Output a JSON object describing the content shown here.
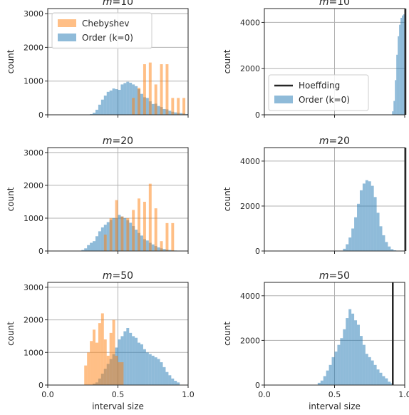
{
  "colors": {
    "chebyshev": "#ff7f0e",
    "order": "#1f77b4",
    "hoeffding": "#262626",
    "grid": "#b0b0b0"
  },
  "chart_data": [
    {
      "type": "histogram",
      "title": "m=10",
      "xlabel": "",
      "ylabel": "count",
      "xlim": [
        0.0,
        1.0
      ],
      "ylim": [
        0,
        3150
      ],
      "yticks": [
        0,
        1000,
        2000,
        3000
      ],
      "xticks": [
        0.0,
        0.5,
        1.0
      ],
      "show_xticklabels": false,
      "legend": {
        "placement": "upper-left",
        "entries": [
          {
            "name": "Chebyshev",
            "kind": "patch",
            "series": "chebyshev"
          },
          {
            "name": "Order (k=0)",
            "kind": "patch",
            "series": "order"
          }
        ]
      },
      "series": [
        {
          "name": "Order (k=0)",
          "key": "order",
          "bin_width": 0.02,
          "bins": [
            [
              0.3,
              20
            ],
            [
              0.32,
              60
            ],
            [
              0.34,
              150
            ],
            [
              0.36,
              300
            ],
            [
              0.38,
              450
            ],
            [
              0.4,
              570
            ],
            [
              0.42,
              680
            ],
            [
              0.44,
              720
            ],
            [
              0.46,
              780
            ],
            [
              0.48,
              760
            ],
            [
              0.5,
              740
            ],
            [
              0.52,
              900
            ],
            [
              0.54,
              940
            ],
            [
              0.56,
              980
            ],
            [
              0.58,
              950
            ],
            [
              0.6,
              900
            ],
            [
              0.62,
              850
            ],
            [
              0.64,
              760
            ],
            [
              0.66,
              620
            ],
            [
              0.68,
              520
            ],
            [
              0.7,
              500
            ],
            [
              0.72,
              400
            ],
            [
              0.74,
              320
            ],
            [
              0.76,
              330
            ],
            [
              0.78,
              260
            ],
            [
              0.8,
              230
            ],
            [
              0.82,
              170
            ],
            [
              0.84,
              160
            ],
            [
              0.86,
              120
            ],
            [
              0.88,
              90
            ],
            [
              0.9,
              70
            ],
            [
              0.92,
              60
            ],
            [
              0.94,
              50
            ],
            [
              0.96,
              40
            ],
            [
              0.98,
              20
            ]
          ]
        },
        {
          "name": "Chebyshev",
          "key": "chebyshev",
          "bin_width": 0.02,
          "bins": [
            [
              0.6,
              500
            ],
            [
              0.64,
              800
            ],
            [
              0.68,
              1500
            ],
            [
              0.72,
              1550
            ],
            [
              0.76,
              900
            ],
            [
              0.8,
              1500
            ],
            [
              0.84,
              1500
            ],
            [
              0.88,
              500
            ],
            [
              0.92,
              500
            ],
            [
              0.96,
              500
            ]
          ]
        }
      ]
    },
    {
      "type": "histogram",
      "title": "m=10",
      "xlabel": "",
      "ylabel": "count",
      "xlim": [
        0.0,
        1.0
      ],
      "ylim": [
        0,
        4600
      ],
      "yticks": [
        0,
        2000,
        4000
      ],
      "xticks": [
        0.0,
        0.5,
        1.0
      ],
      "show_xticklabels": false,
      "legend": {
        "placement": "lower-left",
        "entries": [
          {
            "name": "Hoeffding",
            "kind": "line",
            "series": "hoeffding"
          },
          {
            "name": "Order (k=0)",
            "kind": "patch",
            "series": "order"
          }
        ]
      },
      "series": [
        {
          "name": "Order (k=0)",
          "key": "order",
          "bin_width": 0.01,
          "bins": [
            [
              0.91,
              150
            ],
            [
              0.92,
              600
            ],
            [
              0.93,
              1500
            ],
            [
              0.94,
              2600
            ],
            [
              0.95,
              3400
            ],
            [
              0.96,
              3900
            ],
            [
              0.97,
              4200
            ],
            [
              0.98,
              4300
            ],
            [
              0.99,
              4350
            ]
          ]
        },
        {
          "name": "Hoeffding",
          "key": "hoeffding",
          "vline": 1.02
        }
      ]
    },
    {
      "type": "histogram",
      "title": "m=20",
      "xlabel": "",
      "ylabel": "count",
      "xlim": [
        0.0,
        1.0
      ],
      "ylim": [
        0,
        3150
      ],
      "yticks": [
        0,
        1000,
        2000,
        3000
      ],
      "xticks": [
        0.0,
        0.5,
        1.0
      ],
      "show_xticklabels": false,
      "series": [
        {
          "name": "Order (k=0)",
          "key": "order",
          "bin_width": 0.02,
          "bins": [
            [
              0.24,
              30
            ],
            [
              0.26,
              80
            ],
            [
              0.28,
              180
            ],
            [
              0.3,
              250
            ],
            [
              0.32,
              300
            ],
            [
              0.34,
              450
            ],
            [
              0.36,
              600
            ],
            [
              0.38,
              720
            ],
            [
              0.4,
              800
            ],
            [
              0.42,
              880
            ],
            [
              0.44,
              950
            ],
            [
              0.46,
              1000
            ],
            [
              0.48,
              1000
            ],
            [
              0.5,
              1100
            ],
            [
              0.52,
              1050
            ],
            [
              0.54,
              1000
            ],
            [
              0.56,
              940
            ],
            [
              0.58,
              860
            ],
            [
              0.6,
              760
            ],
            [
              0.62,
              650
            ],
            [
              0.64,
              550
            ],
            [
              0.66,
              470
            ],
            [
              0.68,
              360
            ],
            [
              0.7,
              320
            ],
            [
              0.72,
              250
            ],
            [
              0.74,
              200
            ],
            [
              0.76,
              150
            ],
            [
              0.78,
              110
            ],
            [
              0.8,
              80
            ],
            [
              0.82,
              60
            ],
            [
              0.84,
              40
            ],
            [
              0.86,
              30
            ],
            [
              0.88,
              20
            ],
            [
              0.9,
              15
            ]
          ]
        },
        {
          "name": "Chebyshev",
          "key": "chebyshev",
          "bin_width": 0.02,
          "bins": [
            [
              0.4,
              500
            ],
            [
              0.44,
              1000
            ],
            [
              0.48,
              1550
            ],
            [
              0.52,
              1050
            ],
            [
              0.56,
              1000
            ],
            [
              0.6,
              1250
            ],
            [
              0.64,
              1600
            ],
            [
              0.68,
              1500
            ],
            [
              0.72,
              2050
            ],
            [
              0.76,
              1300
            ],
            [
              0.8,
              300
            ],
            [
              0.84,
              850
            ],
            [
              0.88,
              850
            ]
          ]
        }
      ]
    },
    {
      "type": "histogram",
      "title": "m=20",
      "xlabel": "",
      "ylabel": "count",
      "xlim": [
        0.0,
        1.0
      ],
      "ylim": [
        0,
        4600
      ],
      "yticks": [
        0,
        2000,
        4000
      ],
      "xticks": [
        0.0,
        0.5,
        1.0
      ],
      "show_xticklabels": false,
      "series": [
        {
          "name": "Order (k=0)",
          "key": "order",
          "bin_width": 0.02,
          "bins": [
            [
              0.56,
              100
            ],
            [
              0.58,
              300
            ],
            [
              0.6,
              600
            ],
            [
              0.62,
              1000
            ],
            [
              0.64,
              1500
            ],
            [
              0.66,
              2100
            ],
            [
              0.68,
              2700
            ],
            [
              0.7,
              3000
            ],
            [
              0.72,
              3150
            ],
            [
              0.74,
              3100
            ],
            [
              0.76,
              2900
            ],
            [
              0.78,
              2400
            ],
            [
              0.8,
              1700
            ],
            [
              0.82,
              1100
            ],
            [
              0.84,
              700
            ],
            [
              0.86,
              400
            ],
            [
              0.88,
              200
            ],
            [
              0.9,
              80
            ],
            [
              0.92,
              30
            ]
          ]
        },
        {
          "name": "Hoeffding",
          "key": "hoeffding",
          "vline": 1.02
        }
      ]
    },
    {
      "type": "histogram",
      "title": "m=50",
      "xlabel": "interval size",
      "ylabel": "count",
      "xlim": [
        0.0,
        1.0
      ],
      "ylim": [
        0,
        3150
      ],
      "yticks": [
        0,
        1000,
        2000,
        3000
      ],
      "xticks": [
        0.0,
        0.5,
        1.0
      ],
      "xticklabels": [
        "0.0",
        "0.5",
        "1.0"
      ],
      "show_xticklabels": true,
      "series": [
        {
          "name": "Order (k=0)",
          "key": "order",
          "bin_width": 0.02,
          "bins": [
            [
              0.32,
              40
            ],
            [
              0.34,
              80
            ],
            [
              0.36,
              200
            ],
            [
              0.38,
              350
            ],
            [
              0.4,
              500
            ],
            [
              0.42,
              650
            ],
            [
              0.44,
              800
            ],
            [
              0.46,
              950
            ],
            [
              0.48,
              1150
            ],
            [
              0.5,
              1400
            ],
            [
              0.52,
              1500
            ],
            [
              0.54,
              1650
            ],
            [
              0.56,
              1750
            ],
            [
              0.58,
              1600
            ],
            [
              0.6,
              1500
            ],
            [
              0.62,
              1450
            ],
            [
              0.64,
              1300
            ],
            [
              0.66,
              1250
            ],
            [
              0.68,
              1100
            ],
            [
              0.7,
              1000
            ],
            [
              0.72,
              950
            ],
            [
              0.74,
              900
            ],
            [
              0.76,
              850
            ],
            [
              0.78,
              800
            ],
            [
              0.8,
              700
            ],
            [
              0.82,
              550
            ],
            [
              0.84,
              400
            ],
            [
              0.86,
              300
            ],
            [
              0.88,
              200
            ],
            [
              0.9,
              130
            ],
            [
              0.92,
              80
            ]
          ]
        },
        {
          "name": "Chebyshev",
          "key": "chebyshev",
          "bin_width": 0.02,
          "bins": [
            [
              0.26,
              600
            ],
            [
              0.28,
              1000
            ],
            [
              0.3,
              1350
            ],
            [
              0.32,
              1700
            ],
            [
              0.34,
              1300
            ],
            [
              0.36,
              1900
            ],
            [
              0.38,
              2200
            ],
            [
              0.4,
              1400
            ],
            [
              0.42,
              900
            ],
            [
              0.44,
              1600
            ],
            [
              0.46,
              2000
            ],
            [
              0.48,
              900
            ],
            [
              0.5,
              700
            ],
            [
              0.52,
              700
            ]
          ]
        }
      ]
    },
    {
      "type": "histogram",
      "title": "m=50",
      "xlabel": "interval size",
      "ylabel": "count",
      "xlim": [
        0.0,
        1.0
      ],
      "ylim": [
        0,
        4600
      ],
      "yticks": [
        0,
        2000,
        4000
      ],
      "xticks": [
        0.0,
        0.5,
        1.0
      ],
      "xticklabels": [
        "0.0",
        "0.5",
        "1.0"
      ],
      "show_xticklabels": true,
      "series": [
        {
          "name": "Order (k=0)",
          "key": "order",
          "bin_width": 0.02,
          "bins": [
            [
              0.38,
              100
            ],
            [
              0.4,
              200
            ],
            [
              0.42,
              400
            ],
            [
              0.44,
              650
            ],
            [
              0.46,
              900
            ],
            [
              0.48,
              1250
            ],
            [
              0.5,
              1500
            ],
            [
              0.52,
              1800
            ],
            [
              0.54,
              2100
            ],
            [
              0.56,
              2500
            ],
            [
              0.58,
              3000
            ],
            [
              0.6,
              3400
            ],
            [
              0.62,
              3200
            ],
            [
              0.64,
              2900
            ],
            [
              0.66,
              2700
            ],
            [
              0.68,
              2200
            ],
            [
              0.7,
              1800
            ],
            [
              0.72,
              1400
            ],
            [
              0.74,
              1250
            ],
            [
              0.76,
              1100
            ],
            [
              0.78,
              900
            ],
            [
              0.8,
              700
            ],
            [
              0.82,
              550
            ],
            [
              0.84,
              400
            ],
            [
              0.86,
              300
            ],
            [
              0.88,
              150
            ],
            [
              0.9,
              80
            ]
          ]
        },
        {
          "name": "Hoeffding",
          "key": "hoeffding",
          "vline": 0.915
        }
      ]
    }
  ]
}
